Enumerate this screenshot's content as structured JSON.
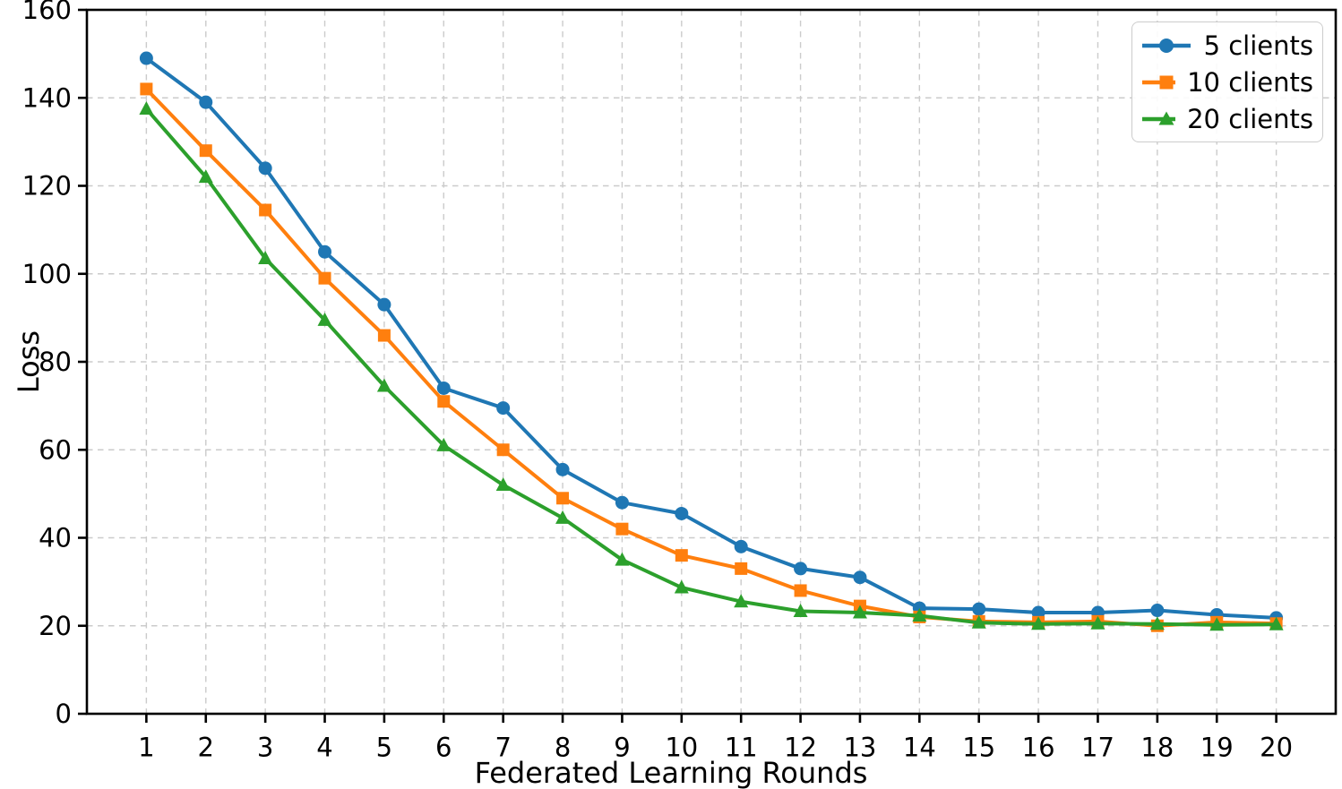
{
  "chart_data": {
    "type": "line",
    "title": "",
    "xlabel": "Federated Learning Rounds",
    "ylabel": "Loss",
    "x": [
      1,
      2,
      3,
      4,
      5,
      6,
      7,
      8,
      9,
      10,
      11,
      12,
      13,
      14,
      15,
      16,
      17,
      18,
      19,
      20
    ],
    "xticks": [
      1,
      2,
      3,
      4,
      5,
      6,
      7,
      8,
      9,
      10,
      11,
      12,
      13,
      14,
      15,
      16,
      17,
      18,
      19,
      20
    ],
    "yticks": [
      0,
      20,
      40,
      60,
      80,
      100,
      120,
      140,
      160
    ],
    "xlim": [
      0,
      21
    ],
    "ylim": [
      0,
      160
    ],
    "grid": true,
    "grid_style": "dashed",
    "legend_position": "upper right",
    "series": [
      {
        "name": "5 clients",
        "color": "#1f77b4",
        "marker": "circle",
        "values": [
          149,
          139,
          124,
          105,
          93,
          74,
          69.5,
          55.5,
          48,
          45.5,
          38,
          33,
          31,
          24,
          23.8,
          23,
          23,
          23.5,
          22.5,
          21.8
        ]
      },
      {
        "name": "10 clients",
        "color": "#ff7f0e",
        "marker": "square",
        "values": [
          142,
          128,
          114.5,
          99,
          86,
          71,
          60,
          49,
          42,
          36,
          33,
          28,
          24.5,
          22,
          21,
          20.8,
          21,
          20,
          20.8,
          20.5
        ]
      },
      {
        "name": "20 clients",
        "color": "#2ca02c",
        "marker": "triangle",
        "values": [
          137.5,
          122,
          103.5,
          89.5,
          74.5,
          61,
          52,
          44.5,
          35,
          28.7,
          25.5,
          23.3,
          23,
          22.3,
          20.7,
          20.4,
          20.5,
          20.4,
          20.2,
          20.3
        ]
      }
    ]
  }
}
